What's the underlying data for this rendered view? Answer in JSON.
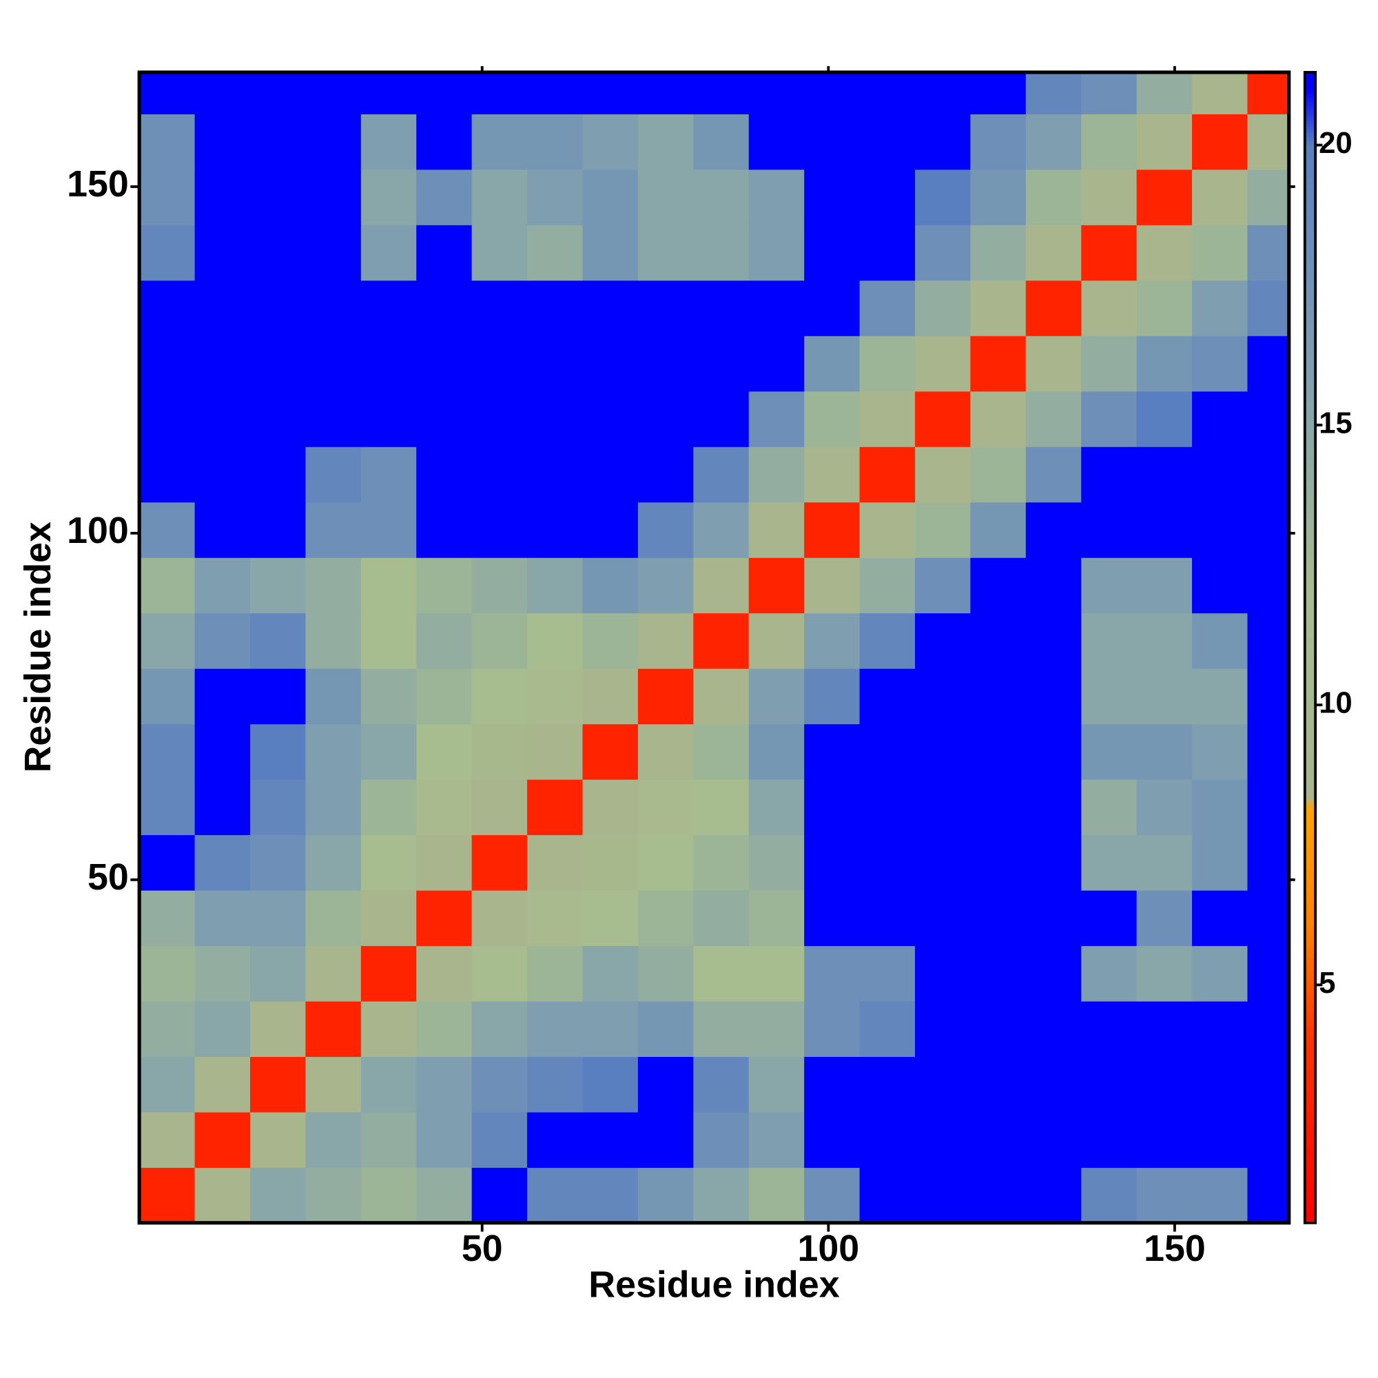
{
  "chart_data": {
    "type": "heatmap",
    "xlabel": "Residue index",
    "ylabel": "Residue index",
    "bins": [
      0.5,
      8.5,
      16.5,
      24.5,
      32.5,
      40.5,
      48.5,
      56.5,
      64.5,
      72.5,
      80.5,
      88.5,
      96.5,
      104.5,
      112.5,
      120.5,
      128.5,
      136.5,
      144.5,
      152.5,
      160.5,
      166.5
    ],
    "xlim": [
      0.5,
      166.5
    ],
    "ylim": [
      0.5,
      166.5
    ],
    "xticks": [
      50,
      100,
      150
    ],
    "yticks": [
      50,
      100,
      150
    ],
    "z": [
      [
        3,
        9,
        15,
        14,
        13,
        14,
        21,
        19,
        19,
        17,
        15,
        13,
        18,
        21,
        21,
        21,
        21,
        19,
        18,
        18,
        21
      ],
      [
        9,
        3,
        9,
        15,
        14,
        16,
        19,
        21,
        21,
        21,
        18,
        16,
        21,
        21,
        21,
        21,
        21,
        21,
        21,
        21,
        21
      ],
      [
        15,
        9,
        3,
        9,
        15,
        16,
        18,
        19,
        20,
        21,
        19,
        15,
        21,
        21,
        21,
        21,
        21,
        21,
        21,
        21,
        21
      ],
      [
        14,
        15,
        9,
        3,
        9,
        13,
        15,
        16,
        16,
        17,
        14,
        14,
        18,
        19,
        21,
        21,
        21,
        21,
        21,
        21,
        21
      ],
      [
        13,
        14,
        15,
        9,
        3,
        9,
        12,
        13,
        15,
        14,
        12,
        12,
        18,
        18,
        21,
        21,
        21,
        16,
        15,
        16,
        21
      ],
      [
        14,
        16,
        16,
        13,
        9,
        3,
        9,
        11,
        12,
        13,
        14,
        13,
        21,
        21,
        21,
        21,
        21,
        21,
        18,
        21,
        21
      ],
      [
        21,
        19,
        18,
        15,
        12,
        9,
        3,
        9,
        10,
        12,
        13,
        14,
        21,
        21,
        21,
        21,
        21,
        15,
        15,
        17,
        21
      ],
      [
        19,
        21,
        19,
        16,
        13,
        11,
        9,
        3,
        9,
        11,
        12,
        15,
        21,
        21,
        21,
        21,
        21,
        14,
        16,
        17,
        21
      ],
      [
        19,
        21,
        20,
        16,
        15,
        12,
        10,
        9,
        3,
        9,
        13,
        17,
        21,
        21,
        21,
        21,
        21,
        17,
        17,
        16,
        21
      ],
      [
        17,
        21,
        21,
        17,
        14,
        13,
        12,
        11,
        9,
        3,
        9,
        16,
        19,
        21,
        21,
        21,
        21,
        15,
        15,
        15,
        21
      ],
      [
        15,
        18,
        19,
        14,
        12,
        14,
        13,
        12,
        13,
        9,
        3,
        9,
        16,
        19,
        21,
        21,
        21,
        15,
        15,
        17,
        21
      ],
      [
        13,
        16,
        15,
        14,
        12,
        13,
        14,
        15,
        17,
        16,
        9,
        3,
        9,
        14,
        18,
        21,
        21,
        16,
        16,
        21,
        21
      ],
      [
        18,
        21,
        21,
        18,
        18,
        21,
        21,
        21,
        21,
        19,
        16,
        9,
        3,
        9,
        13,
        17,
        21,
        21,
        21,
        21,
        21
      ],
      [
        21,
        21,
        21,
        19,
        18,
        21,
        21,
        21,
        21,
        21,
        19,
        14,
        9,
        3,
        9,
        13,
        18,
        21,
        21,
        21,
        21
      ],
      [
        21,
        21,
        21,
        21,
        21,
        21,
        21,
        21,
        21,
        21,
        21,
        18,
        13,
        9,
        3,
        9,
        14,
        18,
        20,
        21,
        21
      ],
      [
        21,
        21,
        21,
        21,
        21,
        21,
        21,
        21,
        21,
        21,
        21,
        21,
        17,
        13,
        9,
        3,
        9,
        14,
        17,
        18,
        21
      ],
      [
        21,
        21,
        21,
        21,
        21,
        21,
        21,
        21,
        21,
        21,
        21,
        21,
        21,
        18,
        14,
        9,
        3,
        9,
        13,
        16,
        19
      ],
      [
        19,
        21,
        21,
        21,
        16,
        21,
        15,
        14,
        17,
        15,
        15,
        16,
        21,
        21,
        18,
        14,
        9,
        3,
        9,
        13,
        18
      ],
      [
        18,
        21,
        21,
        21,
        15,
        18,
        15,
        16,
        17,
        15,
        15,
        16,
        21,
        21,
        20,
        17,
        13,
        9,
        3,
        9,
        14
      ],
      [
        18,
        21,
        21,
        21,
        16,
        21,
        17,
        17,
        16,
        15,
        17,
        21,
        21,
        21,
        21,
        18,
        16,
        13,
        9,
        3,
        9
      ],
      [
        21,
        21,
        21,
        21,
        21,
        21,
        21,
        21,
        21,
        21,
        21,
        21,
        21,
        21,
        21,
        21,
        19,
        18,
        14,
        9,
        3
      ]
    ],
    "colorbar": {
      "lim": [
        0.75,
        21.3
      ],
      "ticks": [
        5,
        10,
        15,
        20
      ]
    },
    "colorscale": [
      [
        0.75,
        "#ff0000"
      ],
      [
        4,
        "#ff3300"
      ],
      [
        6,
        "#ff8000"
      ],
      [
        8.2,
        "#ffa500"
      ],
      [
        8.3,
        "#a9b58c"
      ],
      [
        12,
        "#a7bc8f"
      ],
      [
        16,
        "#7f9fb0"
      ],
      [
        20,
        "#5a7fc0"
      ],
      [
        21,
        "#0000ff"
      ]
    ]
  }
}
